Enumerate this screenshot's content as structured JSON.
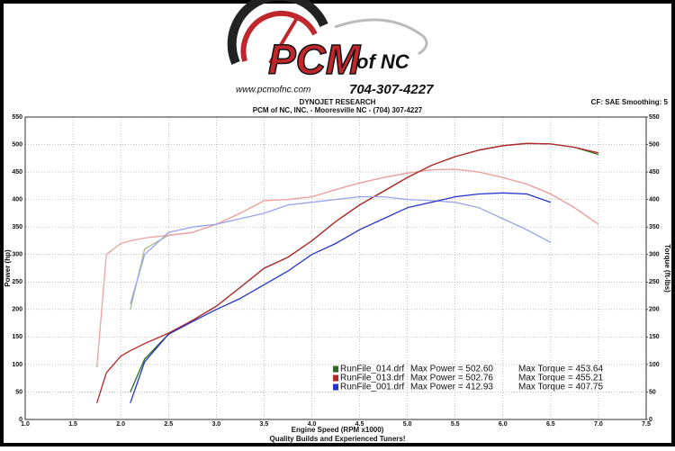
{
  "header": {
    "logo_text": "PCM",
    "logo_suffix": "of NC",
    "website": "www.pcmofnc.com",
    "phone": "704-307-4227"
  },
  "chart_data": {
    "type": "line",
    "title": "DYNOJET RESEARCH",
    "subtitle": "PCM of NC, INC. - Mooresville NC - (704) 307-4227",
    "annotation": "CF: SAE  Smoothing: 5",
    "footer": "Quality Builds and Experienced Tuners!",
    "y_label": "Power (hp)",
    "y2_label": "Torque (ft-lbs)",
    "x_label": "Engine Speed (RPM x1000)",
    "x": [
      1.75,
      1.85,
      2.0,
      2.1,
      2.25,
      2.5,
      2.75,
      3.0,
      3.25,
      3.5,
      3.75,
      4.0,
      4.25,
      4.5,
      4.75,
      5.0,
      5.25,
      5.5,
      5.75,
      6.0,
      6.25,
      6.5,
      6.75,
      7.0
    ],
    "xlim": [
      1.0,
      7.5
    ],
    "xticks": [
      {
        "value": 1.0,
        "label": "1.0"
      },
      {
        "value": 1.5,
        "label": "1.5"
      },
      {
        "value": 2.0,
        "label": "2.0"
      },
      {
        "value": 2.5,
        "label": "2.5"
      },
      {
        "value": 3.0,
        "label": "3.0"
      },
      {
        "value": 3.5,
        "label": "3.5"
      },
      {
        "value": 4.0,
        "label": "4.0"
      },
      {
        "value": 4.5,
        "label": "4.5"
      },
      {
        "value": 5.0,
        "label": "5.0"
      },
      {
        "value": 5.5,
        "label": "5.5"
      },
      {
        "value": 6.0,
        "label": "6.0"
      },
      {
        "value": 6.5,
        "label": "6.5"
      },
      {
        "value": 7.0,
        "label": "7.0"
      },
      {
        "value": 7.5,
        "label": "7.5"
      }
    ],
    "ylim": [
      0,
      550
    ],
    "yticks": [
      0,
      50,
      100,
      150,
      200,
      250,
      300,
      350,
      400,
      450,
      500,
      550
    ],
    "y2lim": [
      0,
      550
    ],
    "y2ticks": [
      0,
      50,
      100,
      150,
      200,
      250,
      300,
      350,
      400,
      450,
      500,
      550
    ],
    "grid": true,
    "series": [
      {
        "name": "RunFile_014.drf",
        "color": "#2f6b1f",
        "torque_color": "#a9b98c",
        "max_power": "Max Power = 502.60",
        "max_torque": "Max Torque = 453.64",
        "values": [
          null,
          null,
          null,
          50,
          110,
          155,
          180,
          206,
          240,
          275,
          295,
          325,
          360,
          390,
          415,
          440,
          462,
          478,
          490,
          498,
          502,
          501,
          495,
          482
        ],
        "torque": [
          null,
          null,
          null,
          200,
          310,
          335,
          340,
          355,
          375,
          398,
          400,
          405,
          418,
          430,
          440,
          448,
          454,
          455,
          450,
          440,
          428,
          410,
          385,
          355
        ]
      },
      {
        "name": "RunFile_013.drf",
        "color": "#b8262a",
        "torque_color": "#f0a2a2",
        "max_power": "Max Power = 502.76",
        "max_torque": "Max Torque = 455.21",
        "values": [
          30,
          85,
          115,
          125,
          138,
          157,
          180,
          206,
          240,
          275,
          295,
          325,
          360,
          390,
          415,
          440,
          462,
          478,
          490,
          498,
          502,
          501,
          495,
          485
        ],
        "torque": [
          95,
          300,
          320,
          325,
          330,
          335,
          340,
          355,
          375,
          398,
          400,
          405,
          418,
          430,
          440,
          448,
          454,
          455,
          450,
          440,
          428,
          410,
          385,
          355
        ]
      },
      {
        "name": "RunFile_001.drf",
        "color": "#2634c8",
        "torque_color": "#98a4ec",
        "max_power": "Max Power = 412.93",
        "max_torque": "Max Torque = 407.75",
        "values": [
          null,
          null,
          null,
          30,
          105,
          155,
          178,
          200,
          220,
          245,
          270,
          300,
          320,
          345,
          365,
          385,
          395,
          405,
          410,
          412,
          410,
          395,
          null,
          null
        ],
        "torque": [
          null,
          null,
          null,
          210,
          300,
          340,
          350,
          355,
          365,
          375,
          390,
          395,
          400,
          405,
          405,
          400,
          398,
          395,
          385,
          365,
          345,
          322,
          null,
          null
        ]
      }
    ]
  }
}
